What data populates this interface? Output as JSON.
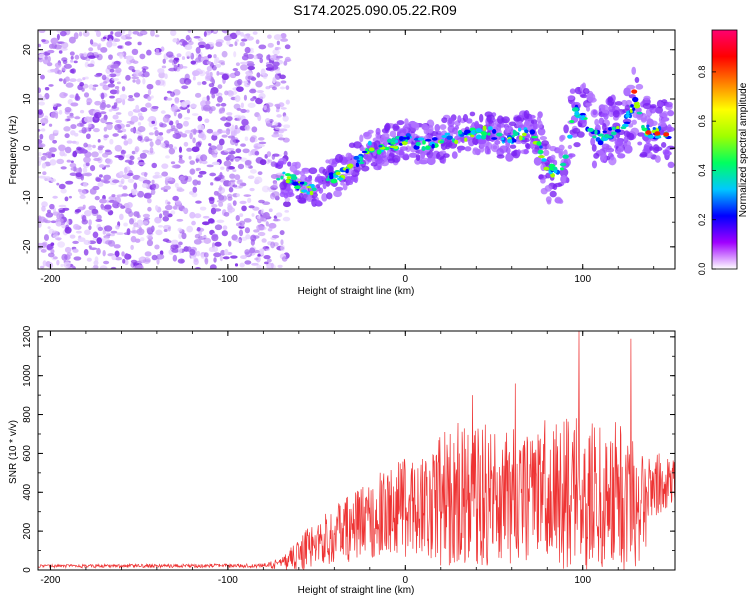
{
  "title": "S174.2025.090.05.22.R09",
  "chart_data": [
    {
      "type": "heatmap",
      "xlabel": "Height of straight line (km)",
      "ylabel": "Frequency (Hz)",
      "xlim": [
        -207,
        152
      ],
      "ylim": [
        -24.5,
        24
      ],
      "xticks": [
        -200,
        -100,
        0,
        100
      ],
      "yticks": [
        -20,
        -10,
        0,
        10,
        20
      ],
      "colorbar": {
        "label": "Normalized spectral amplitude",
        "range": [
          0,
          0.97
        ],
        "ticks": [
          0.0,
          0.2,
          0.4,
          0.6,
          0.8
        ],
        "tick_labels": [
          "0.0",
          "0.2",
          "0.4",
          "0.6",
          "0.8"
        ],
        "colors": [
          "#ffffff",
          "#a000ff",
          "#0000ff",
          "#00c8ff",
          "#00ff60",
          "#a0ff00",
          "#ffff00",
          "#ff8000",
          "#ff0000",
          "#ff0070"
        ]
      },
      "ridge": {
        "x": [
          -72,
          -65,
          -58,
          -50,
          -45,
          -40,
          -35,
          -30,
          -25,
          -20,
          -15,
          -10,
          -5,
          0,
          5,
          10,
          15,
          20,
          25,
          30,
          35,
          40,
          45,
          50,
          55,
          60,
          65,
          70,
          75,
          80,
          85,
          90,
          95,
          100,
          105,
          110,
          115,
          120,
          125,
          130,
          135,
          140,
          145,
          150
        ],
        "y": [
          -6,
          -6,
          -8,
          -8,
          -6,
          -6,
          -5,
          -3,
          -2,
          0,
          0,
          1,
          1,
          2,
          1,
          1,
          1,
          1,
          3,
          2,
          3,
          3,
          3,
          3,
          2,
          2,
          3,
          3,
          1,
          -4,
          -5,
          -3,
          8,
          6,
          4,
          2,
          3,
          4,
          6,
          10,
          4,
          3,
          3,
          3
        ]
      },
      "noise_region_x": [
        -207,
        -72
      ]
    },
    {
      "type": "line",
      "xlabel": "Height of straight line (km)",
      "ylabel": "SNR (10 * v/v)",
      "xlim": [
        -207,
        152
      ],
      "ylim": [
        0,
        1230
      ],
      "xticks": [
        -200,
        -100,
        0,
        100
      ],
      "yticks": [
        0,
        200,
        400,
        600,
        800,
        1000,
        1200
      ],
      "color": "#ee3333",
      "envelope": {
        "x": [
          -207,
          -80,
          -70,
          -60,
          -50,
          -40,
          -30,
          -20,
          -10,
          0,
          10,
          20,
          30,
          40,
          50,
          60,
          70,
          80,
          90,
          100,
          110,
          120,
          130,
          140,
          150
        ],
        "mean": [
          20,
          22,
          30,
          80,
          140,
          180,
          220,
          260,
          300,
          320,
          340,
          360,
          400,
          380,
          400,
          380,
          360,
          420,
          380,
          400,
          360,
          380,
          340,
          420,
          460
        ],
        "amplitude": [
          8,
          10,
          30,
          90,
          120,
          150,
          180,
          200,
          230,
          260,
          300,
          340,
          380,
          360,
          380,
          350,
          330,
          380,
          400,
          420,
          380,
          400,
          360,
          200,
          120
        ]
      },
      "peaks": [
        [
          38,
          900
        ],
        [
          62,
          960
        ],
        [
          98,
          1230
        ],
        [
          127,
          1190
        ]
      ]
    }
  ]
}
